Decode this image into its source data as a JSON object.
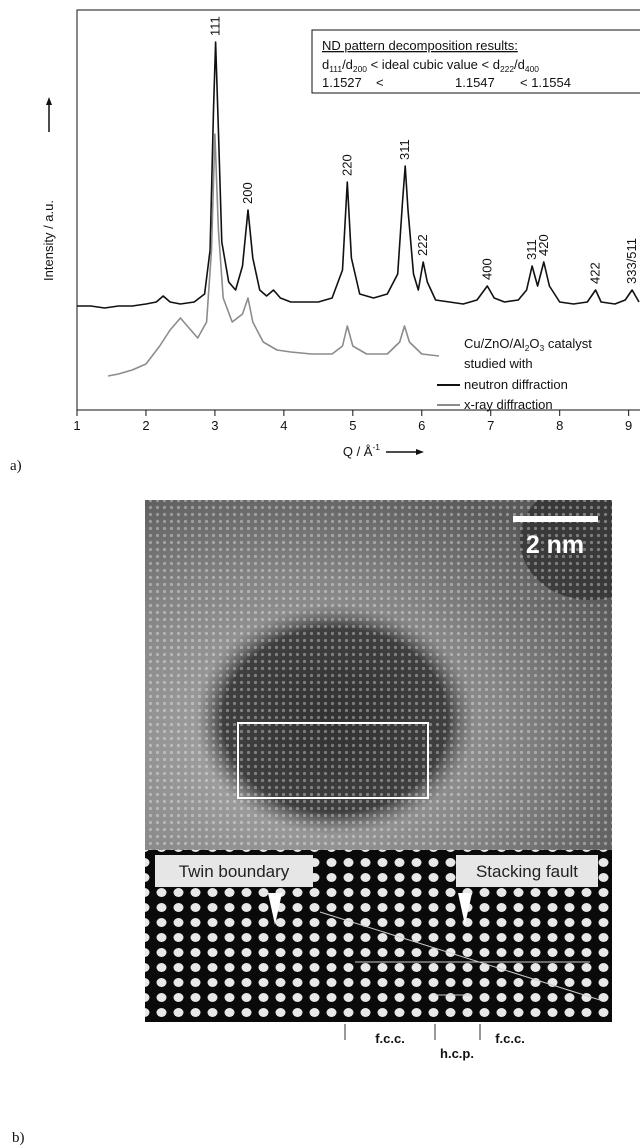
{
  "chart_data": {
    "type": "line",
    "y_label": "Intensity / a.u.",
    "x_label": [
      {
        "text": "Q / Å"
      },
      {
        "sup": "-1"
      }
    ],
    "xlim": [
      1,
      9.15
    ],
    "ylim": [
      0,
      100
    ],
    "xticks": [
      1,
      2,
      3,
      4,
      5,
      6,
      7,
      8,
      9
    ],
    "series": [
      {
        "name": "neutron diffraction",
        "color": "#111111",
        "x": [
          1.0,
          1.2,
          1.4,
          1.6,
          1.8,
          2.0,
          2.15,
          2.25,
          2.35,
          2.5,
          2.7,
          2.85,
          2.93,
          2.98,
          3.01,
          3.05,
          3.1,
          3.2,
          3.3,
          3.4,
          3.48,
          3.55,
          3.65,
          3.75,
          3.85,
          3.95,
          4.1,
          4.3,
          4.5,
          4.7,
          4.85,
          4.92,
          4.98,
          5.1,
          5.3,
          5.5,
          5.65,
          5.72,
          5.76,
          5.8,
          5.88,
          5.95,
          6.02,
          6.08,
          6.2,
          6.4,
          6.6,
          6.8,
          6.95,
          7.05,
          7.2,
          7.4,
          7.52,
          7.6,
          7.68,
          7.77,
          7.85,
          8.0,
          8.2,
          8.4,
          8.52,
          8.6,
          8.8,
          8.95,
          9.05,
          9.15
        ],
        "values": [
          26,
          26,
          25.5,
          26,
          26,
          26.5,
          27,
          28.5,
          27,
          26.5,
          27,
          29,
          40,
          75,
          92,
          70,
          42,
          32,
          30,
          36,
          50,
          38,
          30,
          28.5,
          30,
          28,
          27,
          27,
          27,
          28,
          35,
          57,
          38,
          29,
          28,
          29,
          34,
          52,
          61,
          50,
          34,
          30,
          37,
          32,
          27.5,
          27,
          26.5,
          27.5,
          31,
          28,
          27,
          27.5,
          30,
          36,
          31,
          37,
          31,
          27,
          26.5,
          27,
          30,
          27,
          26.5,
          27.5,
          30,
          27
        ]
      },
      {
        "name": "x-ray diffraction",
        "color": "#8c8c8c",
        "x": [
          1.45,
          1.6,
          1.8,
          2.0,
          2.2,
          2.35,
          2.5,
          2.6,
          2.75,
          2.88,
          2.95,
          3.0,
          3.05,
          3.12,
          3.25,
          3.4,
          3.48,
          3.55,
          3.7,
          3.9,
          4.1,
          4.4,
          4.7,
          4.85,
          4.92,
          5.0,
          5.2,
          5.5,
          5.68,
          5.75,
          5.82,
          6.0,
          6.25
        ],
        "values": [
          8.5,
          9,
          10,
          11.5,
          16,
          20,
          23,
          21,
          18,
          22,
          40,
          69,
          45,
          28,
          22,
          24,
          28,
          22,
          17,
          15,
          14.5,
          14,
          14,
          16,
          21,
          16,
          14,
          14,
          17,
          21,
          17,
          14,
          13.5
        ]
      }
    ],
    "peak_labels": [
      {
        "label": "111",
        "x": 3.01,
        "y": 92
      },
      {
        "label": "200",
        "x": 3.48,
        "y": 50
      },
      {
        "label": "220",
        "x": 4.92,
        "y": 57
      },
      {
        "label": "311",
        "x": 5.76,
        "y": 61
      },
      {
        "label": "222",
        "x": 6.02,
        "y": 37
      },
      {
        "label": "400",
        "x": 6.95,
        "y": 31
      },
      {
        "label": "311",
        "x": 7.6,
        "y": 36
      },
      {
        "label": "420",
        "x": 7.77,
        "y": 37
      },
      {
        "label": "422",
        "x": 8.52,
        "y": 30
      },
      {
        "label": "333/511",
        "x": 9.05,
        "y": 30
      }
    ],
    "inset": {
      "title": "ND pattern decomposition results:",
      "header": [
        {
          "text": "d"
        },
        {
          "sub": "111"
        },
        {
          "text": "/d"
        },
        {
          "sub": "200"
        },
        {
          "text": "  <  ideal cubic value  <  d"
        },
        {
          "sub": "222"
        },
        {
          "text": "/d"
        },
        {
          "sub": "400"
        }
      ],
      "values": [
        "1.1527",
        "<",
        "1.1547",
        "< 1.1554"
      ]
    },
    "legend_note": [
      [
        {
          "text": "Cu/ZnO/Al"
        },
        {
          "sub": "2"
        },
        {
          "text": "O"
        },
        {
          "sub": "3"
        },
        {
          "text": " catalyst"
        }
      ],
      [
        {
          "text": "studied with"
        }
      ]
    ]
  },
  "panel_labels": [
    "a)",
    "b)"
  ],
  "panel_b": {
    "scale_bar": "2 nm",
    "left_label": "Twin boundary",
    "right_label": "Stacking fault",
    "regions": [
      "f.c.c.",
      "h.c.p.",
      "f.c.c."
    ]
  }
}
